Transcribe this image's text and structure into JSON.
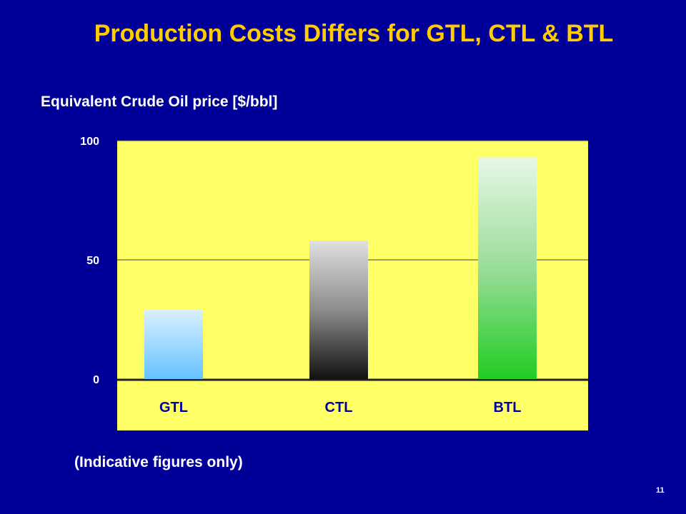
{
  "slide": {
    "title": "Production Costs Differs for GTL, CTL & BTL",
    "subtitle": "Equivalent Crude Oil price [$/bbl]",
    "note": "(Indicative figures only)",
    "page_number": "11"
  },
  "colors": {
    "background": "#000099",
    "title": "#FFCC00",
    "plot_area": "#FFFF66"
  },
  "chart_data": {
    "type": "bar",
    "title": "",
    "xlabel": "",
    "ylabel": "Equivalent Crude Oil price [$/bbl]",
    "categories": [
      "GTL",
      "CTL",
      "BTL"
    ],
    "values": [
      29,
      58,
      93
    ],
    "ylim": [
      0,
      100
    ],
    "yticks": [
      0,
      50,
      100
    ],
    "grid": true,
    "legend": "none"
  }
}
